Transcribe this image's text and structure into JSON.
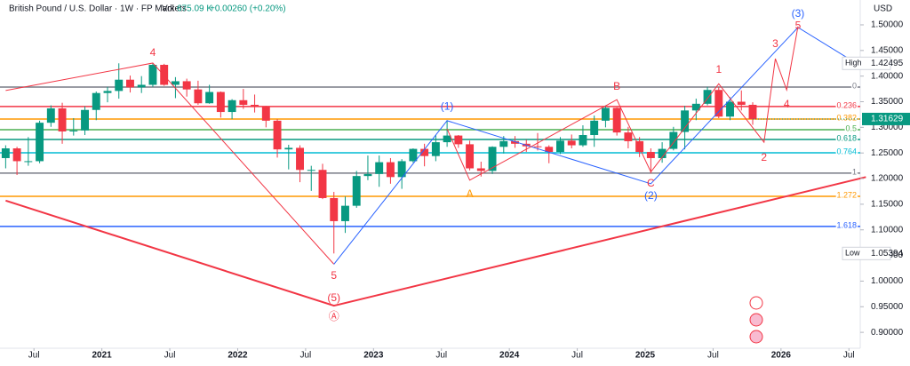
{
  "chart_data": {
    "type": "candlestick",
    "title": "British Pound / U.S. Dollar · 1W · FP Markets",
    "volume_label": "Vol",
    "volume": "675.09 K",
    "change": "+0.00260 (+0.20%)",
    "currency": "USD",
    "up_color": "#089981",
    "down_color": "#f23645",
    "x": [
      "2020-04",
      "2020-05",
      "2020-06",
      "2020-07",
      "2020-08",
      "2020-09",
      "2020-10",
      "2020-11",
      "2020-12",
      "2021-01",
      "2021-02",
      "2021-03",
      "2021-04",
      "2021-05",
      "2021-06",
      "2021-07",
      "2021-08",
      "2021-09",
      "2021-10",
      "2021-11",
      "2021-12",
      "2022-01",
      "2022-02",
      "2022-03",
      "2022-04",
      "2022-05",
      "2022-06",
      "2022-07",
      "2022-08",
      "2022-09",
      "2022-10",
      "2022-11",
      "2022-12",
      "2023-01",
      "2023-02",
      "2023-03",
      "2023-04",
      "2023-05",
      "2023-06",
      "2023-07",
      "2023-08",
      "2023-09",
      "2023-10",
      "2023-11",
      "2023-12",
      "2024-01",
      "2024-02",
      "2024-03",
      "2024-04",
      "2024-05",
      "2024-06",
      "2024-07",
      "2024-08",
      "2024-09",
      "2024-10",
      "2024-11",
      "2024-12",
      "2025-01",
      "2025-02",
      "2025-03",
      "2025-04",
      "2025-05",
      "2025-06",
      "2025-07",
      "2025-08",
      "2025-09",
      "2025-10"
    ],
    "open": [
      1.24,
      1.259,
      1.234,
      1.234,
      1.309,
      1.337,
      1.292,
      1.294,
      1.334,
      1.367,
      1.371,
      1.393,
      1.378,
      1.383,
      1.422,
      1.383,
      1.39,
      1.374,
      1.347,
      1.369,
      1.33,
      1.353,
      1.344,
      1.341,
      1.313,
      1.257,
      1.26,
      1.217,
      1.217,
      1.162,
      1.117,
      1.147,
      1.205,
      1.209,
      1.232,
      1.203,
      1.234,
      1.258,
      1.244,
      1.271,
      1.284,
      1.267,
      1.22,
      1.215,
      1.262,
      1.273,
      1.268,
      1.263,
      1.262,
      1.252,
      1.274,
      1.265,
      1.285,
      1.313,
      1.338,
      1.29,
      1.273,
      1.252,
      1.24,
      1.258,
      1.291,
      1.333,
      1.346,
      1.373,
      1.321,
      1.35,
      1.344
    ],
    "high": [
      1.265,
      1.262,
      1.281,
      1.313,
      1.343,
      1.348,
      1.318,
      1.341,
      1.37,
      1.379,
      1.42495,
      1.401,
      1.4,
      1.425,
      1.424,
      1.398,
      1.395,
      1.391,
      1.383,
      1.37,
      1.355,
      1.375,
      1.364,
      1.342,
      1.316,
      1.266,
      1.265,
      1.225,
      1.229,
      1.174,
      1.165,
      1.215,
      1.245,
      1.245,
      1.24,
      1.238,
      1.259,
      1.268,
      1.285,
      1.314,
      1.285,
      1.274,
      1.233,
      1.263,
      1.283,
      1.283,
      1.276,
      1.289,
      1.265,
      1.281,
      1.286,
      1.304,
      1.323,
      1.343,
      1.339,
      1.301,
      1.281,
      1.259,
      1.271,
      1.301,
      1.342,
      1.356,
      1.379,
      1.379,
      1.359,
      1.372,
      1.349
    ],
    "low": [
      1.22,
      1.207,
      1.225,
      1.23,
      1.301,
      1.268,
      1.284,
      1.285,
      1.314,
      1.349,
      1.356,
      1.368,
      1.367,
      1.379,
      1.381,
      1.357,
      1.36,
      1.344,
      1.346,
      1.319,
      1.316,
      1.336,
      1.329,
      1.3,
      1.241,
      1.218,
      1.193,
      1.176,
      1.16,
      1.05394,
      1.094,
      1.143,
      1.197,
      1.184,
      1.19,
      1.18,
      1.231,
      1.224,
      1.234,
      1.262,
      1.26,
      1.216,
      1.204,
      1.209,
      1.249,
      1.26,
      1.252,
      1.255,
      1.23,
      1.248,
      1.259,
      1.262,
      1.262,
      1.3,
      1.284,
      1.259,
      1.242,
      1.21,
      1.231,
      1.255,
      1.257,
      1.314,
      1.343,
      1.318,
      1.314,
      1.333,
      1.305
    ],
    "close": [
      1.259,
      1.234,
      1.234,
      1.309,
      1.337,
      1.292,
      1.294,
      1.334,
      1.367,
      1.371,
      1.393,
      1.378,
      1.383,
      1.422,
      1.383,
      1.39,
      1.374,
      1.347,
      1.369,
      1.33,
      1.353,
      1.344,
      1.341,
      1.313,
      1.257,
      1.26,
      1.217,
      1.217,
      1.162,
      1.117,
      1.147,
      1.205,
      1.209,
      1.232,
      1.203,
      1.234,
      1.258,
      1.244,
      1.271,
      1.284,
      1.267,
      1.22,
      1.215,
      1.262,
      1.273,
      1.268,
      1.263,
      1.262,
      1.252,
      1.274,
      1.265,
      1.285,
      1.313,
      1.338,
      1.29,
      1.273,
      1.252,
      1.24,
      1.258,
      1.291,
      1.333,
      1.346,
      1.373,
      1.321,
      1.35,
      1.344,
      1.31629
    ],
    "xlim": [
      "2020-04",
      "2026-08"
    ],
    "xticks": [
      {
        "value": "2020-07",
        "label": "Jul"
      },
      {
        "value": "2021-01",
        "label": "2021"
      },
      {
        "value": "2021-07",
        "label": "Jul"
      },
      {
        "value": "2022-01",
        "label": "2022"
      },
      {
        "value": "2022-07",
        "label": "Jul"
      },
      {
        "value": "2023-01",
        "label": "2023"
      },
      {
        "value": "2023-07",
        "label": "Jul"
      },
      {
        "value": "2024-01",
        "label": "2024"
      },
      {
        "value": "2024-07",
        "label": "Jul"
      },
      {
        "value": "2025-01",
        "label": "2025"
      },
      {
        "value": "2025-07",
        "label": "Jul"
      },
      {
        "value": "2026-01",
        "label": "2026"
      },
      {
        "value": "2026-07",
        "label": "Jul"
      }
    ],
    "ylim": [
      0.869,
      1.5485
    ],
    "yticks": [
      {
        "value": 1.5,
        "label": "1.50000"
      },
      {
        "value": 1.45,
        "label": "1.45000"
      },
      {
        "value": 1.4,
        "label": "1.40000"
      },
      {
        "value": 1.35,
        "label": "1.35000"
      },
      {
        "value": 1.3,
        "label": "1.30000"
      },
      {
        "value": 1.25,
        "label": "1.25000"
      },
      {
        "value": 1.2,
        "label": "1.20000"
      },
      {
        "value": 1.15,
        "label": "1.15000"
      },
      {
        "value": 1.1,
        "label": "1.10000"
      },
      {
        "value": 1.05,
        "label": "1.05000"
      },
      {
        "value": 1.0,
        "label": "1.00000"
      },
      {
        "value": 0.95,
        "label": "0.95000"
      },
      {
        "value": 0.9,
        "label": "0.90000"
      }
    ],
    "high_marker": {
      "label": "High",
      "value": 1.42495
    },
    "low_marker": {
      "label": "Low",
      "value": 1.05394
    },
    "last_price": 1.31629,
    "fib_levels": [
      {
        "ratio": 0,
        "price": 1.3787,
        "color": "#787b86"
      },
      {
        "ratio": 0.236,
        "price": 1.3406,
        "color": "#f23645"
      },
      {
        "ratio": 0.382,
        "price": 1.3163,
        "color": "#ff9800"
      },
      {
        "ratio": 0.5,
        "price": 1.2955,
        "color": "#4caf50"
      },
      {
        "ratio": 0.618,
        "price": 1.2764,
        "color": "#089981"
      },
      {
        "ratio": 0.764,
        "price": 1.2504,
        "color": "#00bcd4"
      },
      {
        "ratio": 1,
        "price": 1.2106,
        "color": "#787b86"
      },
      {
        "ratio": 1.272,
        "price": 1.1655,
        "color": "#ff9800"
      },
      {
        "ratio": 1.618,
        "price": 1.1066,
        "color": "#2962ff"
      }
    ],
    "waves": [
      {
        "color": "#f23645",
        "width": 1,
        "x": [
          "2020-04",
          "2021-05",
          "2022-09"
        ],
        "y": [
          1.372,
          1.4255,
          1.033
        ]
      },
      {
        "color": "#2962ff",
        "width": 1,
        "x": [
          "2022-09",
          "2023-07",
          "2025-01",
          "2026-02",
          "2026-07"
        ],
        "y": [
          1.033,
          1.313,
          1.19,
          1.495,
          1.427
        ]
      },
      {
        "color": "#f23645",
        "width": 1,
        "x": [
          "2023-07",
          "2023-09",
          "2024-10",
          "2025-01",
          "2025-07",
          "2025-11",
          "2025-12",
          "2026-01",
          "2026-02"
        ],
        "y": [
          1.297,
          1.197,
          1.354,
          1.213,
          1.385,
          1.271,
          1.434,
          1.373,
          1.497
        ]
      },
      {
        "color": "#f23645",
        "width": 2,
        "x": [
          "2020-04",
          "2022-09",
          "2026-08"
        ],
        "y": [
          1.157,
          0.952,
          1.203
        ]
      }
    ],
    "annotations": [
      {
        "text": "4",
        "x": "2021-05",
        "y": 1.445,
        "color": "#f23645"
      },
      {
        "text": "5",
        "x": "2022-09",
        "y": 1.01,
        "color": "#f23645"
      },
      {
        "text": "(5)",
        "x": "2022-09",
        "y": 0.966,
        "color": "#f23645"
      },
      {
        "text": "Ⓐ",
        "x": "2022-09",
        "y": 0.93,
        "color": "#f23645"
      },
      {
        "text": "(1)",
        "x": "2023-07",
        "y": 1.34,
        "color": "#2962ff"
      },
      {
        "text": "A",
        "x": "2023-09",
        "y": 1.169,
        "color": "#ff9800"
      },
      {
        "text": "B",
        "x": "2024-10",
        "y": 1.379,
        "color": "#f23645"
      },
      {
        "text": "C",
        "x": "2025-01",
        "y": 1.19,
        "color": "#f23645"
      },
      {
        "text": "(2)",
        "x": "2025-01",
        "y": 1.166,
        "color": "#2962ff"
      },
      {
        "text": "1",
        "x": "2025-07",
        "y": 1.412,
        "color": "#f23645"
      },
      {
        "text": "2",
        "x": "2025-11",
        "y": 1.24,
        "color": "#f23645"
      },
      {
        "text": "3",
        "x": "2025-12",
        "y": 1.462,
        "color": "#f23645"
      },
      {
        "text": "4",
        "x": "2026-01",
        "y": 1.344,
        "color": "#f23645"
      },
      {
        "text": "5",
        "x": "2026-02",
        "y": 1.498,
        "color": "#f23645"
      },
      {
        "text": "(3)",
        "x": "2026-02",
        "y": 1.521,
        "color": "#2962ff"
      }
    ]
  }
}
